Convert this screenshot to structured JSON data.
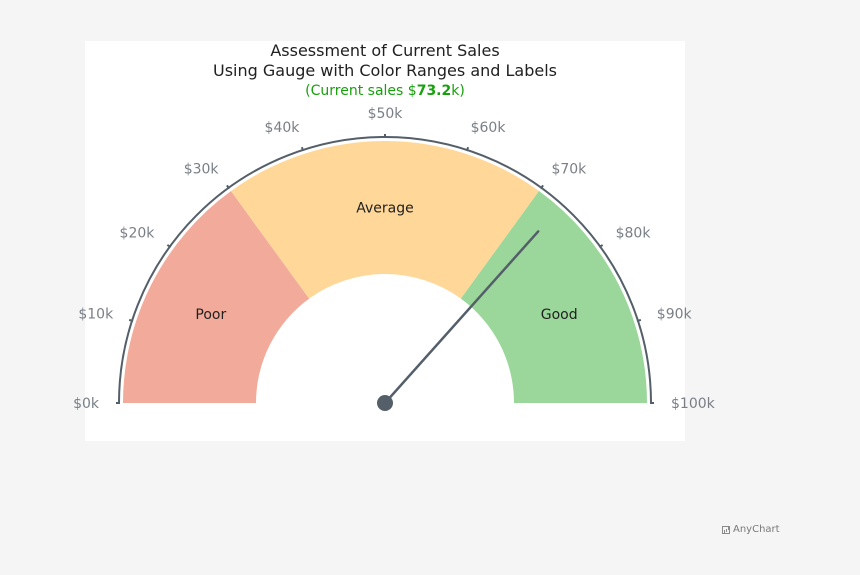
{
  "chart_data": {
    "type": "gauge",
    "title_lines": [
      "Assessment of Current Sales",
      "Using Gauge with Color Ranges and Labels"
    ],
    "subtitle": {
      "prefix": "(Current sales $",
      "value_text": "73.2",
      "suffix": "k)"
    },
    "value": 73.2,
    "scale": {
      "min": 0,
      "max": 100,
      "interval": 10
    },
    "tick_labels": [
      "$0k",
      "$10k",
      "$20k",
      "$30k",
      "$40k",
      "$50k",
      "$60k",
      "$70k",
      "$80k",
      "$90k",
      "$100k"
    ],
    "ranges": [
      {
        "label": "Poor",
        "from": 0,
        "to": 30,
        "color": "#f2ab9b"
      },
      {
        "label": "Average",
        "from": 30,
        "to": 70,
        "color": "#ffd899"
      },
      {
        "label": "Good",
        "from": 70,
        "to": 100,
        "color": "#9bd79b"
      }
    ],
    "colors": {
      "axis": "#545f69",
      "needle": "#545f69",
      "subtitle": "#17a10c"
    }
  },
  "credit": {
    "text": "AnyChart",
    "icon": "chart-icon"
  }
}
